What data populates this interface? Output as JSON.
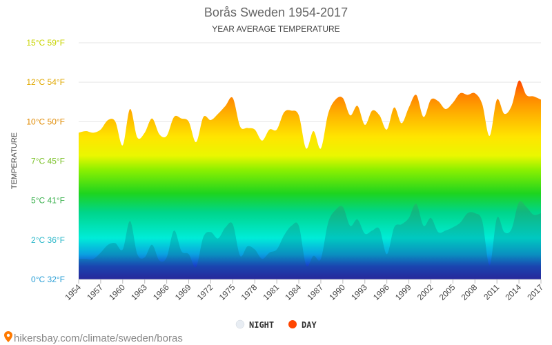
{
  "chart_data": {
    "type": "area",
    "title": "Borås Sweden 1954-2017",
    "subtitle": "YEAR AVERAGE TEMPERATURE",
    "ylabel": "TEMPERATURE",
    "ylim": [
      0,
      15
    ],
    "y_ticks": [
      {
        "value": 0,
        "label": "0°C 32°F",
        "color": "#2a9fd6"
      },
      {
        "value": 2.5,
        "label": "2°C 36°F",
        "color": "#2ab7c9"
      },
      {
        "value": 5,
        "label": "5°C 41°F",
        "color": "#3cb14f"
      },
      {
        "value": 7.5,
        "label": "7°C 45°F",
        "color": "#7cc22a"
      },
      {
        "value": 10,
        "label": "10°C 50°F",
        "color": "#e08a00"
      },
      {
        "value": 12.5,
        "label": "12°C 54°F",
        "color": "#e0a800"
      },
      {
        "value": 15,
        "label": "15°C 59°F",
        "color": "#c9d400"
      }
    ],
    "x_tick_labels": [
      "1954",
      "1957",
      "1960",
      "1963",
      "1966",
      "1969",
      "1972",
      "1975",
      "1978",
      "1981",
      "1984",
      "1987",
      "1990",
      "1993",
      "1996",
      "1999",
      "2002",
      "2005",
      "2008",
      "2011",
      "2014",
      "2017"
    ],
    "x": [
      1954,
      1955,
      1956,
      1957,
      1958,
      1959,
      1960,
      1961,
      1962,
      1963,
      1964,
      1965,
      1966,
      1967,
      1968,
      1969,
      1970,
      1971,
      1972,
      1973,
      1974,
      1975,
      1976,
      1977,
      1978,
      1979,
      1980,
      1981,
      1982,
      1983,
      1984,
      1985,
      1986,
      1987,
      1988,
      1989,
      1990,
      1991,
      1992,
      1993,
      1994,
      1995,
      1996,
      1997,
      1998,
      1999,
      2000,
      2001,
      2002,
      2003,
      2004,
      2005,
      2006,
      2007,
      2008,
      2009,
      2010,
      2011,
      2012,
      2013,
      2014,
      2015,
      2016,
      2017
    ],
    "series": [
      {
        "name": "DAY",
        "color": "#ff4500",
        "values": [
          9.3,
          9.4,
          9.3,
          9.5,
          10.1,
          10.0,
          8.5,
          10.8,
          9.0,
          9.3,
          10.2,
          9.2,
          9.1,
          10.3,
          10.2,
          10.0,
          8.7,
          10.3,
          10.1,
          10.5,
          11.0,
          11.5,
          9.7,
          9.6,
          9.5,
          8.8,
          9.5,
          9.5,
          10.6,
          10.7,
          10.4,
          8.3,
          9.4,
          8.3,
          10.5,
          11.4,
          11.5,
          10.4,
          11.0,
          9.8,
          10.7,
          10.4,
          9.5,
          10.9,
          9.9,
          10.9,
          11.7,
          10.3,
          11.4,
          11.3,
          10.8,
          11.2,
          11.8,
          11.7,
          11.8,
          11.1,
          9.1,
          11.4,
          10.5,
          11.0,
          12.6,
          11.7,
          11.6,
          11.4
        ]
      },
      {
        "name": "NIGHT",
        "color": "#e8edf3",
        "values": [
          1.3,
          1.3,
          1.3,
          1.7,
          2.2,
          2.3,
          1.9,
          3.7,
          1.6,
          1.4,
          2.2,
          1.2,
          1.4,
          3.1,
          1.8,
          1.6,
          0.8,
          2.7,
          3.0,
          2.6,
          3.3,
          3.5,
          1.5,
          2.1,
          1.9,
          1.3,
          1.7,
          1.9,
          2.8,
          3.4,
          3.4,
          0.9,
          1.5,
          1.3,
          3.6,
          4.4,
          4.6,
          3.4,
          3.8,
          2.9,
          3.1,
          3.2,
          1.6,
          3.3,
          3.5,
          3.9,
          4.8,
          3.4,
          3.9,
          3.0,
          3.1,
          3.3,
          3.6,
          4.2,
          4.2,
          3.7,
          0.9,
          3.9,
          3.0,
          3.2,
          4.9,
          4.6,
          4.1,
          4.2
        ]
      }
    ],
    "legend": [
      "NIGHT",
      "DAY"
    ],
    "legend_position": "bottom-center",
    "grid": true
  },
  "footer": {
    "icon": "location-pin-icon",
    "text": "hikersbay.com/climate/sweden/boras"
  }
}
